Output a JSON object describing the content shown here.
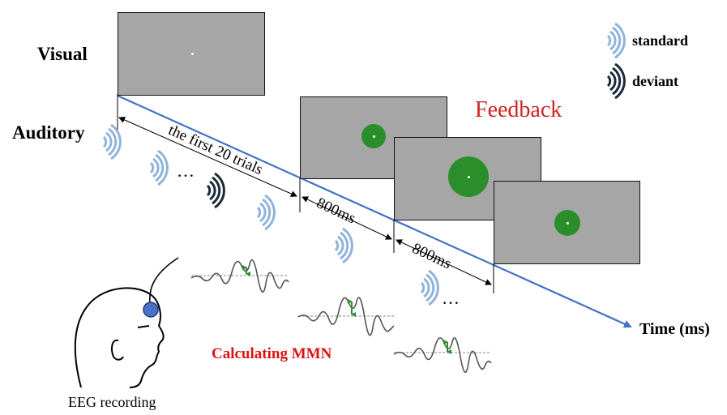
{
  "labels": {
    "visual": "Visual",
    "auditory": "Auditory",
    "feedback": "Feedback",
    "time_axis": "Time (ms)",
    "first_trials": "the first 20 trials",
    "interval_1": "800ms",
    "interval_2": "800ms",
    "ellipsis_1": "…",
    "ellipsis_2": "…",
    "calculating_mmn": "Calculating MMN",
    "eeg_recording": "EEG recording"
  },
  "legend": {
    "standard": "standard",
    "deviant": "deviant"
  },
  "colors": {
    "time_arrow": "#4472c4",
    "screen_gray": "#a6a6a6",
    "feedback_green": "#2a8f2a",
    "feedback_text": "#cc2222",
    "mmn_text": "#dd1111",
    "standard_wave": "#8fb4d9",
    "deviant_wave": "#1b2a3a",
    "electrode": "#4a72c8"
  },
  "icons": [
    "sound-wave-standard-icon",
    "sound-wave-deviant-icon",
    "head-outline-icon",
    "electrode-icon",
    "erp-waveform-icon"
  ]
}
